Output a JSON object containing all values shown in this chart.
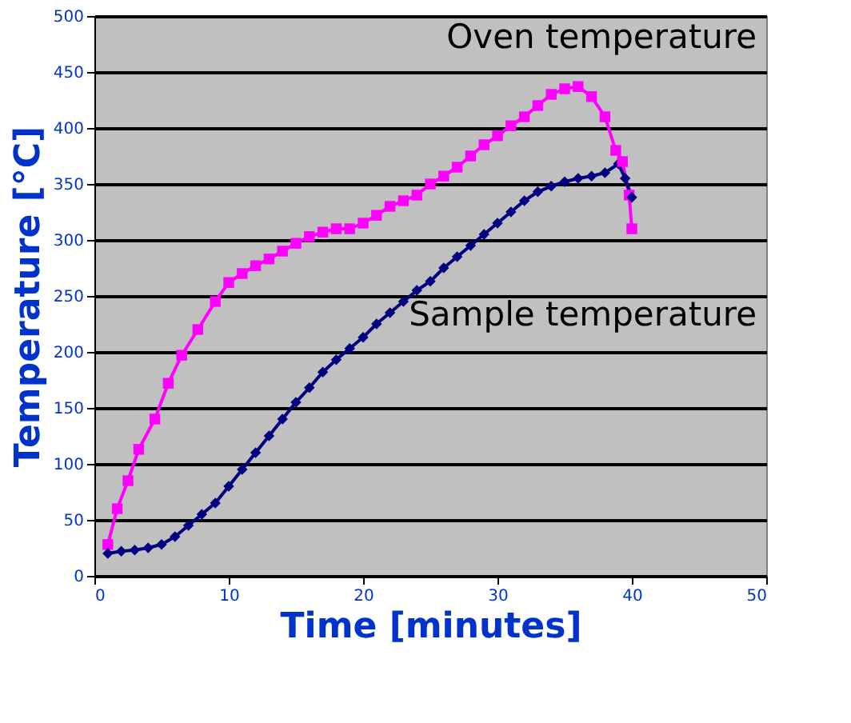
{
  "chart_data": {
    "type": "line",
    "xlabel": "Time [minutes]",
    "ylabel": "Temperature [°C]",
    "xlim": [
      0,
      50
    ],
    "xticks": [
      0,
      10,
      20,
      30,
      40,
      50
    ],
    "ylim": [
      0,
      500
    ],
    "yticks": [
      0,
      50,
      100,
      150,
      200,
      250,
      300,
      350,
      400,
      450,
      500
    ],
    "grid": "y",
    "line_style": "solid",
    "series": [
      {
        "name": "Oven temperature",
        "color": "#ff00ff",
        "marker": "square",
        "x": [
          1,
          1.7,
          2.5,
          3.3,
          4.5,
          5.5,
          6.5,
          7.7,
          9,
          10,
          11,
          12,
          13,
          14,
          15,
          16,
          17,
          18,
          19,
          20,
          21,
          22,
          23,
          24,
          25,
          26,
          27,
          28,
          29,
          30,
          31,
          32,
          33,
          34,
          35,
          36,
          37,
          38,
          38.8,
          39.3,
          39.8,
          40
        ],
        "values": [
          28,
          60,
          85,
          113,
          140,
          172,
          197,
          220,
          245,
          262,
          270,
          277,
          283,
          290,
          297,
          303,
          307,
          310,
          310,
          315,
          322,
          330,
          335,
          340,
          350,
          357,
          365,
          375,
          385,
          393,
          402,
          410,
          420,
          430,
          435,
          437,
          428,
          410,
          380,
          370,
          340,
          310
        ]
      },
      {
        "name": "Sample temperature",
        "color": "#000080",
        "marker": "diamond",
        "x": [
          1,
          2,
          3,
          4,
          5,
          6,
          7,
          8,
          9,
          10,
          11,
          12,
          13,
          14,
          15,
          16,
          17,
          18,
          19,
          20,
          21,
          22,
          23,
          24,
          25,
          26,
          27,
          28,
          29,
          30,
          31,
          32,
          33,
          34,
          35,
          36,
          37,
          38,
          39,
          39.5,
          40
        ],
        "values": [
          20,
          22,
          23,
          25,
          28,
          35,
          45,
          55,
          65,
          80,
          95,
          110,
          125,
          140,
          155,
          168,
          182,
          193,
          203,
          213,
          225,
          235,
          245,
          255,
          263,
          275,
          285,
          295,
          305,
          315,
          325,
          335,
          343,
          348,
          352,
          355,
          357,
          360,
          368,
          355,
          338
        ]
      }
    ]
  }
}
